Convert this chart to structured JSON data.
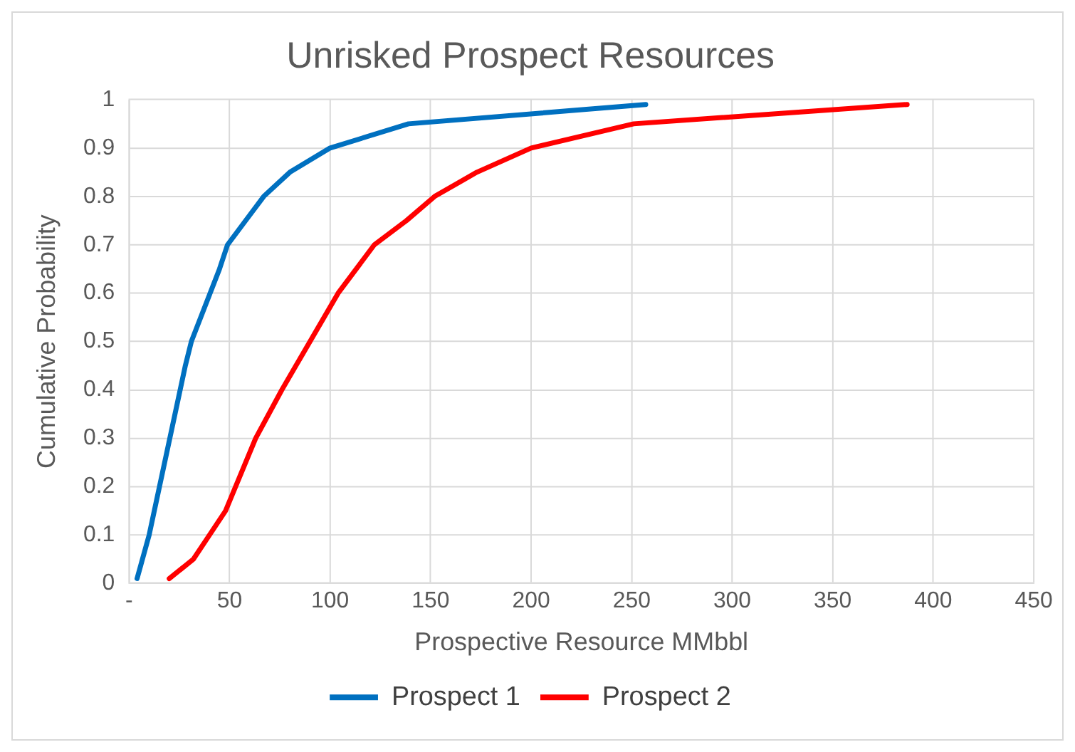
{
  "chart_data": {
    "type": "line",
    "title": "Unrisked Prospect Resources",
    "xlabel": "Prospective Resource MMbbl",
    "ylabel": "Cumulative Probability",
    "xlim": [
      0,
      450
    ],
    "xticks": [
      {
        "value": 0,
        "label": "-"
      },
      50,
      100,
      150,
      200,
      250,
      300,
      350,
      400,
      450
    ],
    "ylim": [
      0,
      1
    ],
    "yticks": [
      0,
      0.1,
      0.2,
      0.3,
      0.4,
      0.5,
      0.6,
      0.7,
      0.8,
      0.9,
      1
    ],
    "grid": true,
    "legend": "bottom",
    "marker": "none",
    "line_style": "solid",
    "series": [
      {
        "name": "Prospect 1",
        "color": "#0070c0",
        "x": [
          4,
          10,
          28,
          31,
          45,
          49,
          58,
          67,
          80,
          100,
          139,
          257
        ],
        "values": [
          0.01,
          0.1,
          0.45,
          0.5,
          0.65,
          0.7,
          0.75,
          0.8,
          0.85,
          0.9,
          0.95,
          0.99
        ]
      },
      {
        "name": "Prospect 2",
        "color": "#ff0000",
        "x": [
          20,
          32,
          40,
          48,
          63,
          76,
          83,
          104,
          122,
          138,
          152,
          173,
          200,
          251,
          387
        ],
        "values": [
          0.01,
          0.05,
          0.1,
          0.15,
          0.3,
          0.4,
          0.45,
          0.6,
          0.7,
          0.75,
          0.8,
          0.85,
          0.9,
          0.95,
          0.99
        ]
      }
    ]
  }
}
